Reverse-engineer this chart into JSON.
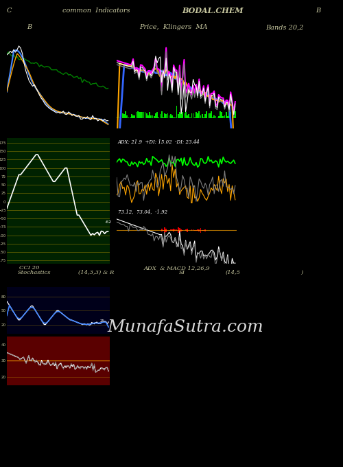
{
  "title": "common  Indicators",
  "ticker": "BODAL.CHEM",
  "bg_color": "#000000",
  "header_text_color": "#c8c8a0",
  "panel1_bg": "#00001a",
  "panel2_bg": "#002200",
  "panel3_bg": "#002200",
  "label_B": "B",
  "label_price_ma": "Price,  Klingers  MA",
  "label_bands": "Bands 20,2",
  "label_cci": "CCI 20",
  "label_adx_macd": "ADX  & MACD 12,26,9",
  "label_adx_values": "ADX: 21.9  +DI: 15.02  -DI: 23.44",
  "label_macd_values": "73.12,  73.04,  -1.92",
  "label_stoch": "Stochastics",
  "label_stoch_params": "(14,3,3) & R",
  "label_si": "SI",
  "label_si_params": "(14,5",
  "label_rparen": ")",
  "watermark": "MunafaSutra.com",
  "label_C": "C",
  "label_B2": "B"
}
